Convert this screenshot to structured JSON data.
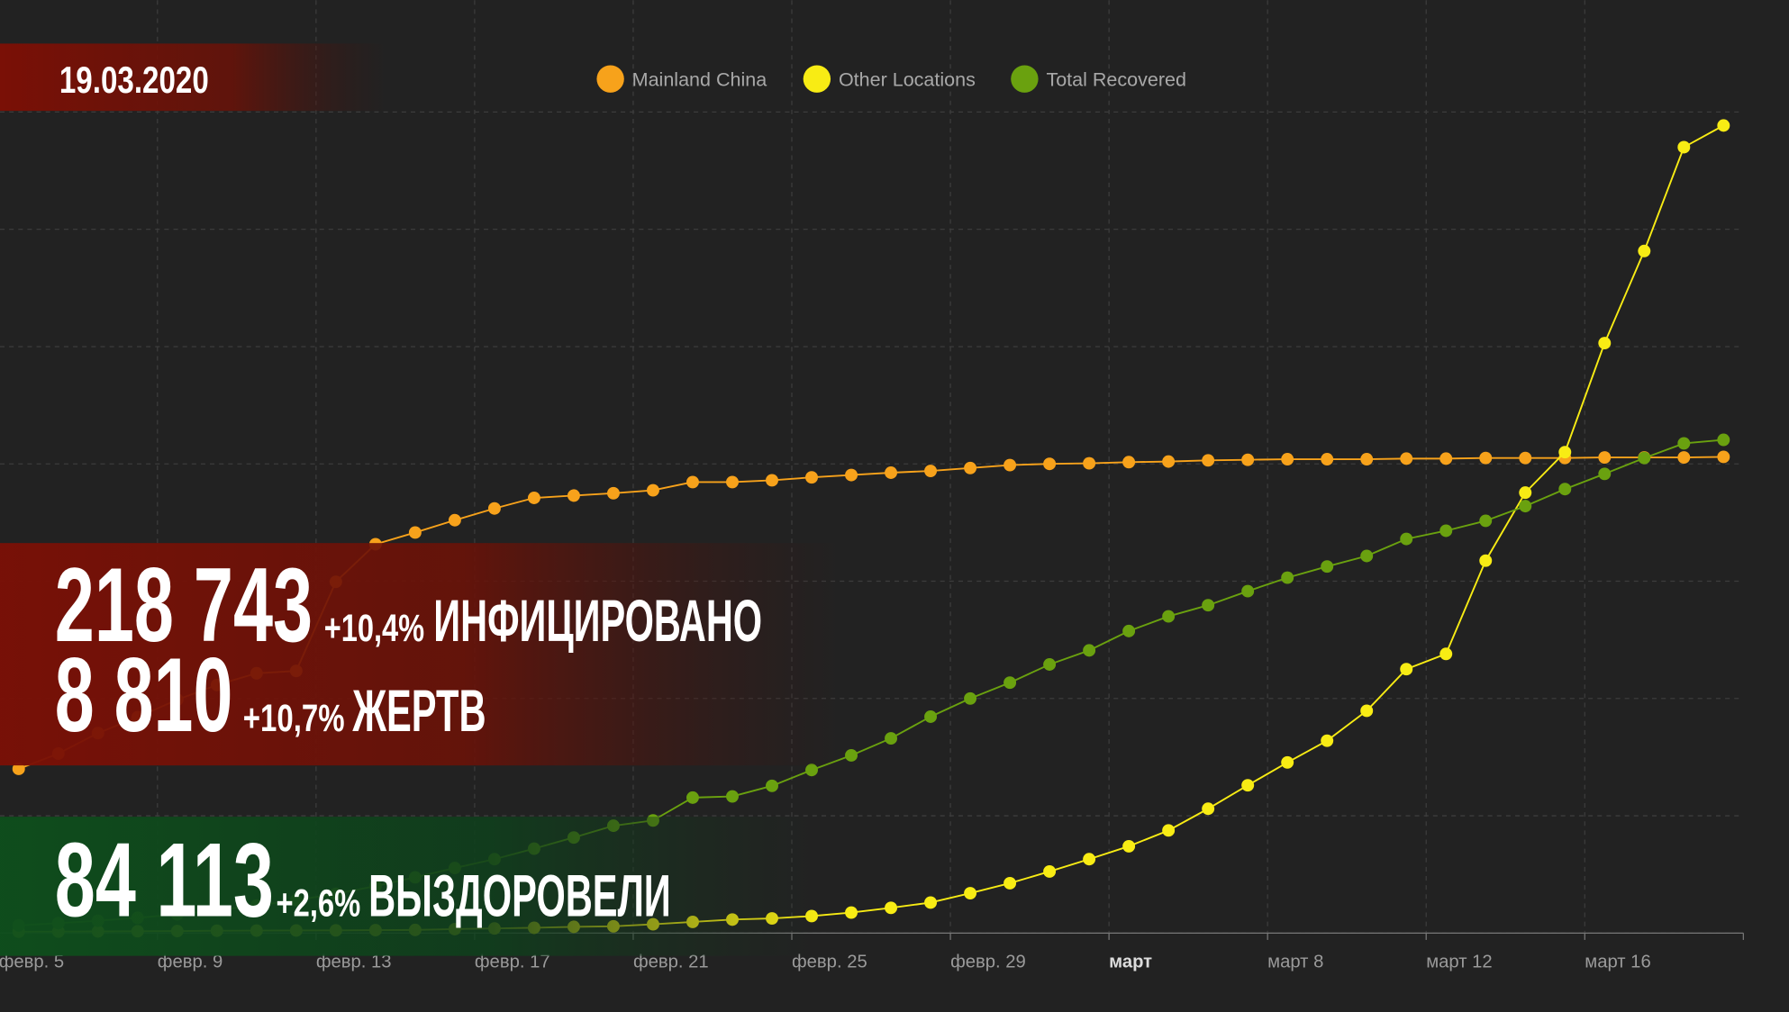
{
  "chart_data": {
    "type": "line",
    "x": [
      "02-05",
      "02-06",
      "02-07",
      "02-08",
      "02-09",
      "02-10",
      "02-11",
      "02-12",
      "02-13",
      "02-14",
      "02-15",
      "02-16",
      "02-17",
      "02-18",
      "02-19",
      "02-20",
      "02-21",
      "02-22",
      "02-23",
      "02-24",
      "02-25",
      "02-26",
      "02-27",
      "02-28",
      "02-29",
      "03-01",
      "03-02",
      "03-03",
      "03-04",
      "03-05",
      "03-06",
      "03-07",
      "03-08",
      "03-09",
      "03-10",
      "03-11",
      "03-12",
      "03-13",
      "03-14",
      "03-15",
      "03-16",
      "03-17",
      "03-18",
      "03-19"
    ],
    "xlim": [
      "02-05",
      "03-20"
    ],
    "xticks": [
      {
        "value": "02-05",
        "label": "февр. 5"
      },
      {
        "value": "02-09",
        "label": "февр. 9"
      },
      {
        "value": "02-13",
        "label": "февр. 13"
      },
      {
        "value": "02-17",
        "label": "февр. 17"
      },
      {
        "value": "02-21",
        "label": "февр. 21"
      },
      {
        "value": "02-25",
        "label": "февр. 25"
      },
      {
        "value": "02-29",
        "label": "февр. 29"
      },
      {
        "value": "03-04",
        "label": "март"
      },
      {
        "value": "03-08",
        "label": "март 8"
      },
      {
        "value": "03-12",
        "label": "март 12"
      },
      {
        "value": "03-16",
        "label": "март 16"
      }
    ],
    "ylim": [
      0,
      140000
    ],
    "yticks": [
      0,
      20000,
      40000,
      60000,
      80000,
      100000,
      120000,
      140000
    ],
    "grid": true,
    "legend": "top",
    "series": [
      {
        "name": "Mainland China",
        "color": "#f7a21b",
        "values": [
          28000,
          30600,
          34100,
          36800,
          39800,
          42300,
          44300,
          44700,
          59900,
          66300,
          68300,
          70400,
          72400,
          74200,
          74600,
          75000,
          75500,
          76900,
          76900,
          77200,
          77700,
          78100,
          78500,
          78800,
          79300,
          79800,
          80000,
          80100,
          80300,
          80400,
          80600,
          80700,
          80800,
          80800,
          80800,
          80900,
          80900,
          81000,
          81000,
          81000,
          81100,
          81100,
          81100,
          81200
        ]
      },
      {
        "name": "Other Locations",
        "color": "#f8ec14",
        "values": [
          230,
          260,
          280,
          310,
          340,
          400,
          420,
          440,
          460,
          500,
          530,
          680,
          790,
          900,
          1070,
          1150,
          1500,
          1900,
          2300,
          2500,
          2900,
          3500,
          4300,
          5200,
          6800,
          8500,
          10500,
          12600,
          14800,
          17500,
          21200,
          25200,
          29100,
          32800,
          37900,
          45000,
          47600,
          63500,
          75100,
          82000,
          100600,
          116300,
          134000,
          137700
        ]
      },
      {
        "name": "Total Recovered",
        "color": "#6aa10f",
        "values": [
          1300,
          1700,
          2100,
          2600,
          3200,
          3900,
          4700,
          5600,
          6700,
          8000,
          9500,
          11100,
          12600,
          14400,
          16300,
          18300,
          19200,
          23100,
          23300,
          25100,
          27800,
          30300,
          33200,
          36900,
          40000,
          42700,
          45800,
          48200,
          51500,
          54000,
          55900,
          58300,
          60600,
          62500,
          64300,
          67200,
          68600,
          70300,
          72800,
          75700,
          78300,
          81000,
          83500,
          84100
        ]
      }
    ]
  },
  "overlay": {
    "date": "19.03.2020",
    "infected": {
      "count": "218 743",
      "change": "+10,4%",
      "label": "ИНФИЦИРОВАНО"
    },
    "deaths": {
      "count": "8 810",
      "change": "+10,7%",
      "label": "ЖЕРТВ"
    },
    "recovered": {
      "count": "84 113",
      "change": "+2,6%",
      "label": "ВЫЗДОРОВЕЛИ"
    }
  }
}
